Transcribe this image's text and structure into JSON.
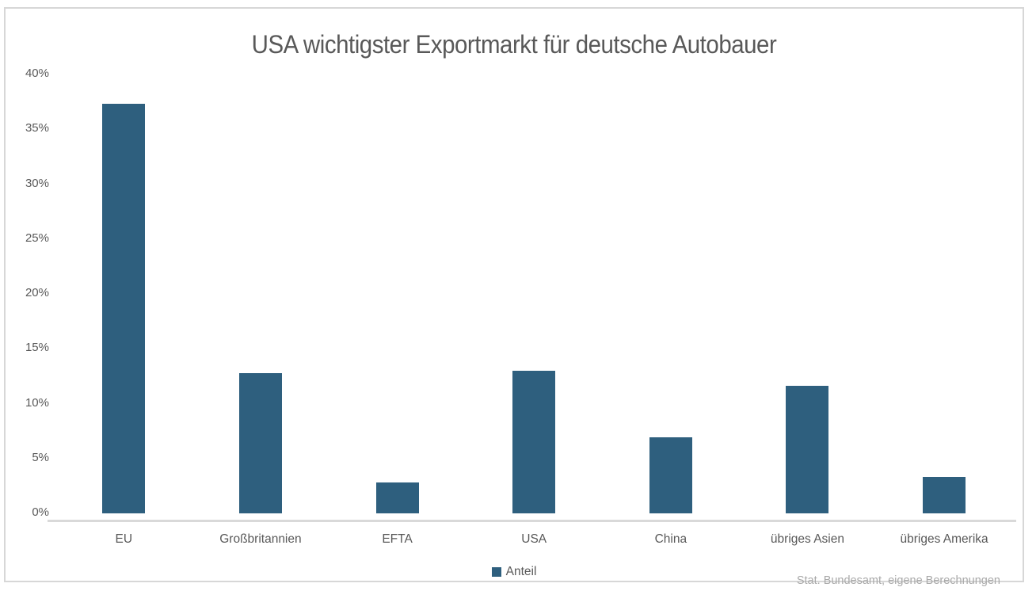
{
  "chart_data": {
    "type": "bar",
    "title": "USA wichtigster Exportmarkt für deutsche Autobauer",
    "categories": [
      "EU",
      "Großbritannien",
      "EFTA",
      "USA",
      "China",
      "übriges Asien",
      "übriges Amerika"
    ],
    "series": [
      {
        "name": "Anteil",
        "values": [
          37.3,
          12.8,
          2.8,
          13.0,
          6.9,
          11.6,
          3.3
        ]
      }
    ],
    "ylim": [
      0,
      40
    ],
    "y_ticks": [
      {
        "value": 0,
        "label": "0%"
      },
      {
        "value": 5,
        "label": "5%"
      },
      {
        "value": 10,
        "label": "10%"
      },
      {
        "value": 15,
        "label": "15%"
      },
      {
        "value": 20,
        "label": "20%"
      },
      {
        "value": 25,
        "label": "25%"
      },
      {
        "value": 30,
        "label": "30%"
      },
      {
        "value": 35,
        "label": "35%"
      },
      {
        "value": 40,
        "label": "40%"
      }
    ],
    "xlabel": "",
    "ylabel": "",
    "grid": false,
    "legend_position": "bottom-center",
    "legend_label": "Anteil",
    "source": "Stat. Bundesamt, eigene Berechnungen"
  },
  "colors": {
    "bar_color": "#2e5f7e",
    "axis_line": "#d9d9d9",
    "frame_border": "#d7d7d7",
    "title_text": "#595959",
    "tick_text": "#595959",
    "source_text": "#a9a9a9"
  }
}
